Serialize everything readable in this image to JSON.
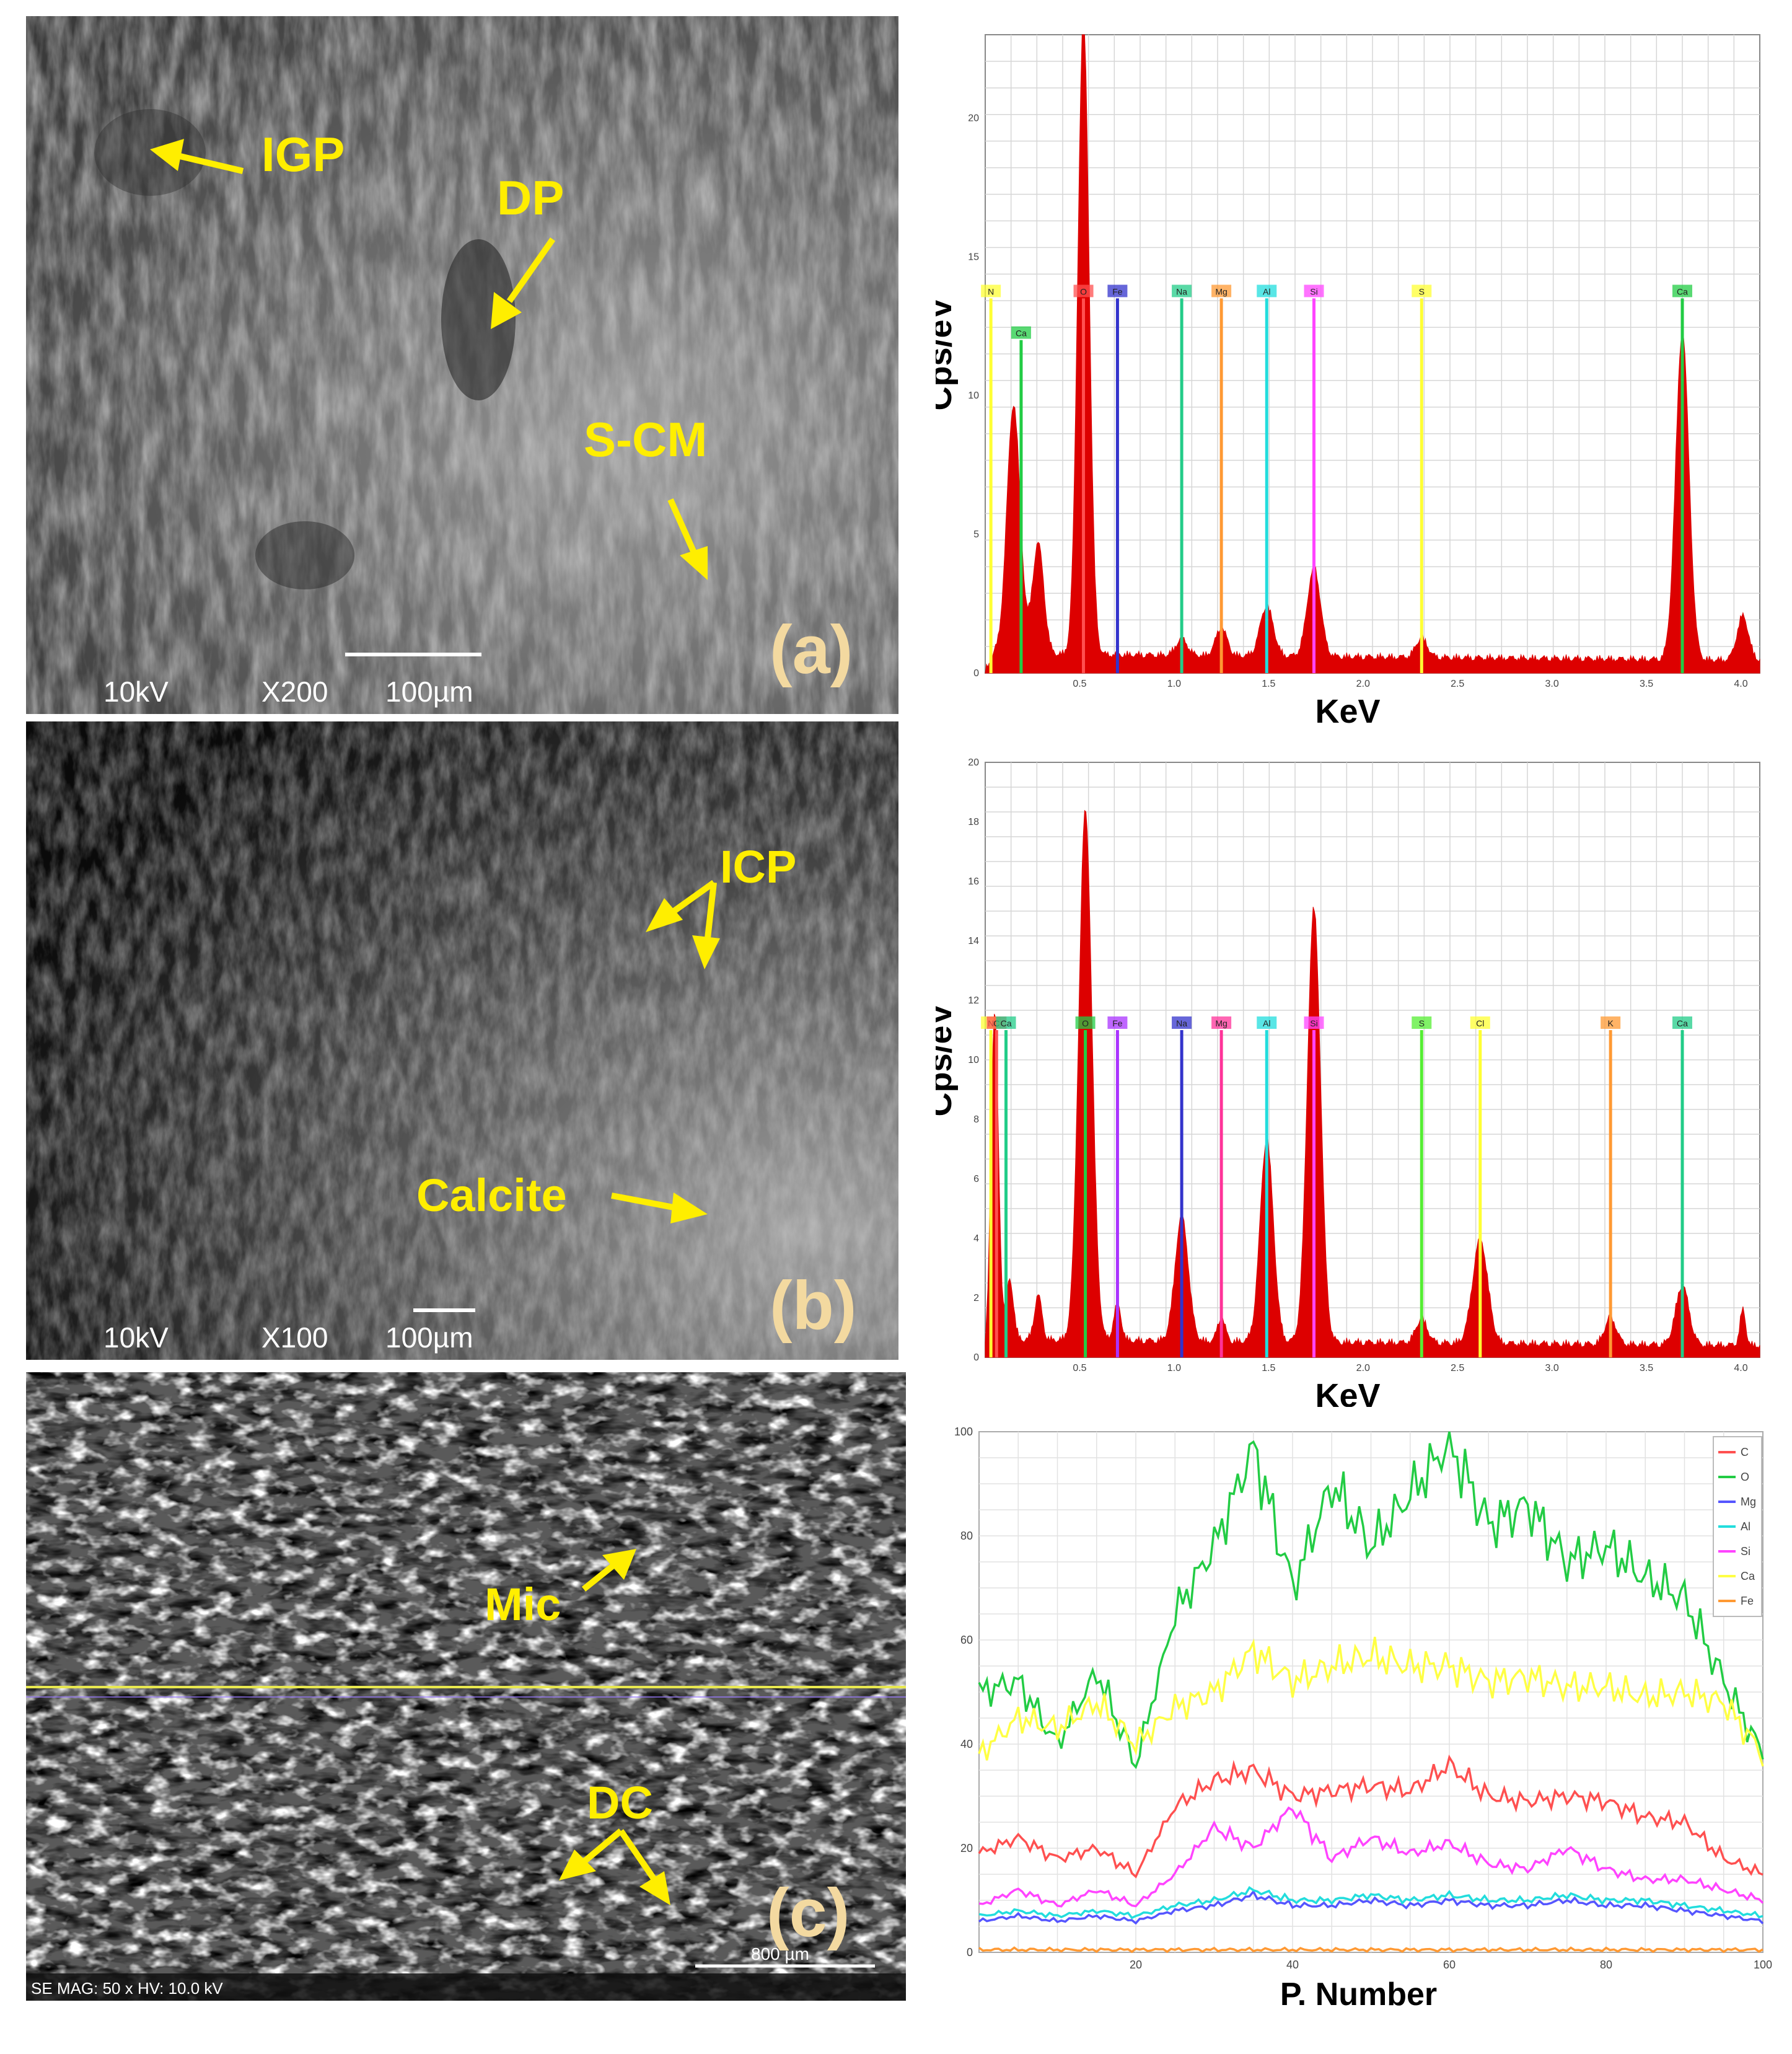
{
  "sem_panels": [
    {
      "letter": "(a)",
      "info": [
        "10kV",
        "X200",
        "100µm"
      ],
      "labels": [
        "IGP",
        "DP",
        "S-CM"
      ]
    },
    {
      "letter": "(b)",
      "info": [
        "10kV",
        "X100",
        "100µm"
      ],
      "labels": [
        "ICP",
        "Calcite"
      ]
    },
    {
      "letter": "(c)",
      "info": [
        "SE MAG: 50 x HV: 10.0 kV",
        "800 µm"
      ],
      "labels": [
        "Mic",
        "DC"
      ]
    }
  ],
  "colors": {
    "spectrum_fill": "#dd0000",
    "label_yellow": "#ffee00",
    "panel_letter": "#f3d9a0",
    "C": "#ff5050",
    "O": "#22cc44",
    "Mg": "#5555ff",
    "Al": "#22dddd",
    "Si": "#ff44ff",
    "Ca": "#ffff44",
    "Fe": "#ff9933"
  },
  "chart_data": [
    {
      "type": "area",
      "panel": "a",
      "xlabel": "KeV",
      "ylabel": "Cps/eV",
      "xlim": [
        0.0,
        4.1
      ],
      "ylim": [
        0,
        23
      ],
      "xticks": [
        0.5,
        1.0,
        1.5,
        2.0,
        2.5,
        3.0,
        3.5,
        4.0
      ],
      "xtick_labels": [
        "0.5",
        "1.0",
        "1.5",
        "2.0",
        "2.5",
        "3.0",
        "3.5",
        "4.0"
      ],
      "yticks": [
        0,
        5,
        10,
        15,
        20
      ],
      "ytick_labels": [
        "0",
        "5",
        "10",
        "15",
        "20"
      ],
      "peaks": [
        {
          "x": 0.15,
          "y": 9.0,
          "w": 0.035
        },
        {
          "x": 0.28,
          "y": 4.0,
          "w": 0.03
        },
        {
          "x": 0.52,
          "y": 23.0,
          "w": 0.03
        },
        {
          "x": 1.04,
          "y": 0.6,
          "w": 0.03
        },
        {
          "x": 1.25,
          "y": 1.0,
          "w": 0.03
        },
        {
          "x": 1.49,
          "y": 1.8,
          "w": 0.035
        },
        {
          "x": 1.74,
          "y": 3.2,
          "w": 0.035
        },
        {
          "x": 2.31,
          "y": 0.7,
          "w": 0.03
        },
        {
          "x": 3.69,
          "y": 11.8,
          "w": 0.035
        },
        {
          "x": 4.01,
          "y": 1.6,
          "w": 0.03
        }
      ],
      "baseline": 0.6,
      "element_markers": [
        {
          "element": "N",
          "x": 0.03,
          "height": 13.5,
          "color": "#ffff33"
        },
        {
          "element": "Ca",
          "x": 0.19,
          "height": 12.0,
          "color": "#22cc44"
        },
        {
          "element": "O",
          "x": 0.52,
          "height": 13.5,
          "color": "#ff5050"
        },
        {
          "element": "Fe",
          "x": 0.7,
          "height": 13.5,
          "color": "#3333cc"
        },
        {
          "element": "Na",
          "x": 1.04,
          "height": 13.5,
          "color": "#22cc88"
        },
        {
          "element": "Mg",
          "x": 1.25,
          "height": 13.5,
          "color": "#ff9933"
        },
        {
          "element": "Al",
          "x": 1.49,
          "height": 13.5,
          "color": "#22dddd"
        },
        {
          "element": "Si",
          "x": 1.74,
          "height": 13.5,
          "color": "#ff44ff"
        },
        {
          "element": "S",
          "x": 2.31,
          "height": 13.5,
          "color": "#ffff33"
        },
        {
          "element": "Ca",
          "x": 3.69,
          "height": 13.5,
          "color": "#22cc44"
        }
      ]
    },
    {
      "type": "area",
      "panel": "b",
      "xlabel": "KeV",
      "ylabel": "Cps/eV",
      "xlim": [
        0.0,
        4.1
      ],
      "ylim": [
        0,
        20
      ],
      "xticks": [
        0.5,
        1.0,
        1.5,
        2.0,
        2.5,
        3.0,
        3.5,
        4.0
      ],
      "xtick_labels": [
        "0.5",
        "1.0",
        "1.5",
        "2.0",
        "2.5",
        "3.0",
        "3.5",
        "4.0"
      ],
      "yticks": [
        0,
        2,
        4,
        6,
        8,
        10,
        12,
        14,
        16,
        18,
        20
      ],
      "ytick_labels": [
        "0",
        "2",
        "4",
        "6",
        "8",
        "10",
        "12",
        "14",
        "16",
        "18",
        "20"
      ],
      "peaks": [
        {
          "x": 0.05,
          "y": 11.0,
          "w": 0.02
        },
        {
          "x": 0.13,
          "y": 2.0,
          "w": 0.02
        },
        {
          "x": 0.28,
          "y": 1.5,
          "w": 0.02
        },
        {
          "x": 0.53,
          "y": 17.8,
          "w": 0.035
        },
        {
          "x": 0.7,
          "y": 1.2,
          "w": 0.02
        },
        {
          "x": 1.04,
          "y": 4.2,
          "w": 0.035
        },
        {
          "x": 1.25,
          "y": 0.8,
          "w": 0.02
        },
        {
          "x": 1.49,
          "y": 6.8,
          "w": 0.035
        },
        {
          "x": 1.74,
          "y": 14.6,
          "w": 0.035
        },
        {
          "x": 2.31,
          "y": 0.8,
          "w": 0.03
        },
        {
          "x": 2.62,
          "y": 3.5,
          "w": 0.04
        },
        {
          "x": 3.31,
          "y": 0.9,
          "w": 0.03
        },
        {
          "x": 3.69,
          "y": 2.0,
          "w": 0.035
        },
        {
          "x": 4.01,
          "y": 1.2,
          "w": 0.015
        }
      ],
      "baseline": 0.5,
      "element_markers": [
        {
          "element": "N",
          "x": 0.03,
          "height": 11.0,
          "color": "#ffff33"
        },
        {
          "element": "C",
          "x": 0.06,
          "height": 11.0,
          "color": "#ff5050"
        },
        {
          "element": "Ca",
          "x": 0.11,
          "height": 11.0,
          "color": "#22cc88"
        },
        {
          "element": "O",
          "x": 0.53,
          "height": 11.0,
          "color": "#22cc44"
        },
        {
          "element": "Fe",
          "x": 0.7,
          "height": 11.0,
          "color": "#aa33ff"
        },
        {
          "element": "Na",
          "x": 1.04,
          "height": 11.0,
          "color": "#3333cc"
        },
        {
          "element": "Mg",
          "x": 1.25,
          "height": 11.0,
          "color": "#ff3399"
        },
        {
          "element": "Al",
          "x": 1.49,
          "height": 11.0,
          "color": "#22dddd"
        },
        {
          "element": "Si",
          "x": 1.74,
          "height": 11.0,
          "color": "#ff44ff"
        },
        {
          "element": "S",
          "x": 2.31,
          "height": 11.0,
          "color": "#55ee33"
        },
        {
          "element": "Cl",
          "x": 2.62,
          "height": 11.0,
          "color": "#ffff33"
        },
        {
          "element": "K",
          "x": 3.31,
          "height": 11.0,
          "color": "#ff9933"
        },
        {
          "element": "Ca",
          "x": 3.69,
          "height": 11.0,
          "color": "#22cc88"
        }
      ]
    },
    {
      "type": "line",
      "panel": "c",
      "xlabel": "P. Number",
      "ylabel": "",
      "xlim": [
        0,
        100
      ],
      "ylim": [
        0,
        100
      ],
      "xticks": [
        20,
        40,
        60,
        80,
        100
      ],
      "xtick_labels": [
        "20",
        "40",
        "60",
        "80",
        "100"
      ],
      "yticks": [
        0,
        20,
        40,
        60,
        80,
        100
      ],
      "ytick_labels": [
        "0",
        "20",
        "40",
        "60",
        "80",
        "100"
      ],
      "legend": "top-right",
      "x": [
        0,
        5,
        10,
        15,
        20,
        25,
        30,
        35,
        40,
        45,
        50,
        55,
        60,
        65,
        70,
        75,
        80,
        85,
        90,
        95,
        100
      ],
      "series": [
        {
          "name": "C",
          "color": "#ff5050",
          "values": [
            19,
            22,
            18,
            20,
            15,
            28,
            33,
            35,
            30,
            31,
            32,
            31,
            36,
            30,
            29,
            30,
            29,
            26,
            25,
            18,
            15
          ]
        },
        {
          "name": "O",
          "color": "#22cc44",
          "values": [
            50,
            52,
            40,
            54,
            36,
            65,
            78,
            97,
            70,
            90,
            78,
            88,
            98,
            82,
            86,
            75,
            78,
            72,
            68,
            52,
            38
          ]
        },
        {
          "name": "Mg",
          "color": "#5555ff",
          "values": [
            6,
            7,
            6,
            7,
            6,
            8,
            9,
            11,
            9,
            9,
            10,
            9,
            10,
            9,
            9,
            10,
            9,
            9,
            8,
            7,
            6
          ]
        },
        {
          "name": "Al",
          "color": "#22dddd",
          "values": [
            7,
            8,
            7,
            8,
            7,
            9,
            10,
            12,
            10,
            10,
            11,
            10,
            11,
            10,
            10,
            11,
            10,
            10,
            9,
            8,
            7
          ]
        },
        {
          "name": "Si",
          "color": "#ff44ff",
          "values": [
            9,
            12,
            9,
            12,
            9,
            15,
            24,
            20,
            28,
            18,
            22,
            19,
            21,
            17,
            16,
            20,
            16,
            14,
            14,
            12,
            10
          ]
        },
        {
          "name": "Ca",
          "color": "#ffff44",
          "values": [
            38,
            45,
            43,
            48,
            40,
            47,
            50,
            58,
            52,
            55,
            57,
            55,
            55,
            52,
            53,
            51,
            51,
            49,
            50,
            48,
            38
          ]
        },
        {
          "name": "Fe",
          "color": "#ff9933",
          "values": [
            0.5,
            0.5,
            0.5,
            0.5,
            0.5,
            0.5,
            0.5,
            0.5,
            0.5,
            0.5,
            0.5,
            0.5,
            0.5,
            0.5,
            0.5,
            0.5,
            0.5,
            0.5,
            0.5,
            0.5,
            0.5
          ]
        }
      ]
    }
  ]
}
